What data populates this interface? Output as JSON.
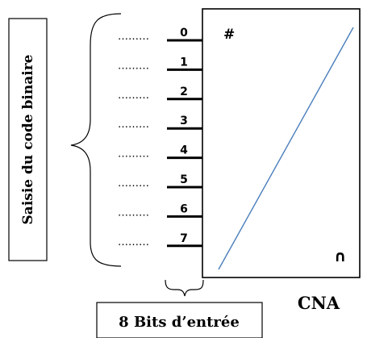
{
  "left_box": {
    "label": "Saisie du code binaire"
  },
  "bottom_box": {
    "label": "8 Bits d’entrée"
  },
  "converter": {
    "label": "CNA",
    "top_symbol": "#",
    "bottom_symbol": "∩",
    "line_color": "#4a7ebb"
  },
  "bits": [
    {
      "number": "0",
      "dots": "………"
    },
    {
      "number": "1",
      "dots": "………"
    },
    {
      "number": "2",
      "dots": "………"
    },
    {
      "number": "3",
      "dots": "………"
    },
    {
      "number": "4",
      "dots": "………"
    },
    {
      "number": "5",
      "dots": "………"
    },
    {
      "number": "6",
      "dots": "………"
    },
    {
      "number": "7",
      "dots": "………"
    }
  ]
}
